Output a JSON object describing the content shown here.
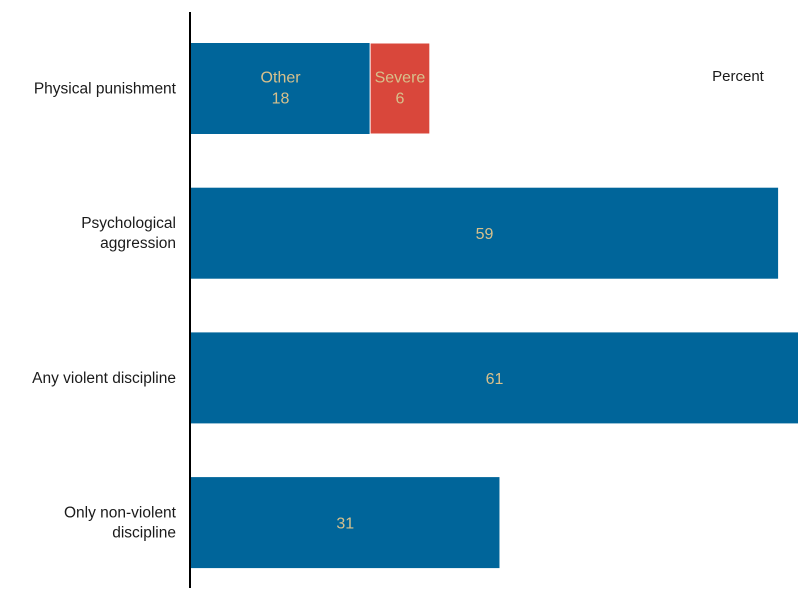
{
  "chart_data": {
    "type": "bar",
    "orientation": "horizontal",
    "stacked": true,
    "unit_label": "Percent",
    "categories": [
      [
        "Physical punishment"
      ],
      [
        "Psychological",
        "aggression"
      ],
      [
        "Any violent discipline"
      ],
      [
        "Only non-violent",
        "discipline"
      ]
    ],
    "series": [
      {
        "name": "Other",
        "color": "#00659a",
        "values": [
          18,
          59,
          61,
          31
        ]
      },
      {
        "name": "Severe",
        "color": "#d9473b",
        "values": [
          6,
          null,
          null,
          null
        ]
      }
    ],
    "label_color": "#d7c08c",
    "xlim": [
      0,
      61
    ],
    "grid": false,
    "legend": "inline"
  }
}
